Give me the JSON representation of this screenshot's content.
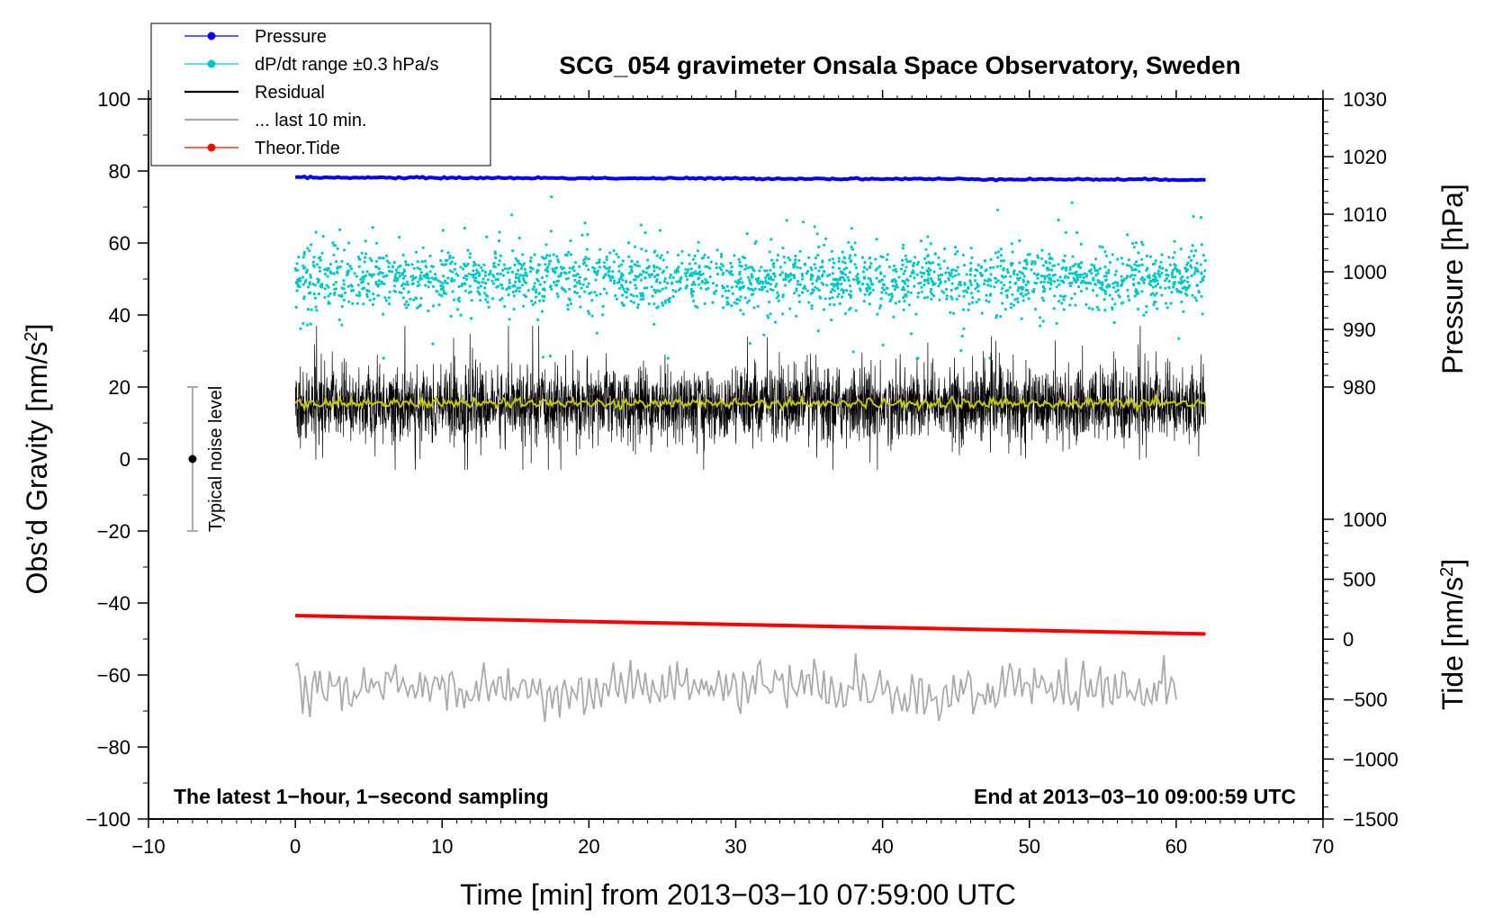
{
  "chart_data": {
    "type": "line",
    "title": "SCG_054 gravimeter Onsala Space Observatory, Sweden",
    "xlabel": "Time [min] from 2013−03−10 07:59:00 UTC",
    "ylabel_left": "Obs’d Gravity [nm/s",
    "ylabel_left_sup": "2",
    "ylabel_left_close": "]",
    "ylabel_right_pressure": "Pressure [hPa]",
    "ylabel_right_tide": "Tide [nm/s",
    "ylabel_right_tide_sup": "2",
    "ylabel_right_tide_close": "]",
    "xlim": [
      -10,
      70
    ],
    "ylim": [
      -100,
      100
    ],
    "x_ticks": [
      -10,
      0,
      10,
      20,
      30,
      40,
      50,
      60,
      70
    ],
    "x_tick_labels": [
      "−10",
      "0",
      "10",
      "20",
      "30",
      "40",
      "50",
      "60",
      "70"
    ],
    "y_ticks": [
      100,
      80,
      60,
      40,
      20,
      0,
      -20,
      -40,
      -60,
      -80,
      -100
    ],
    "y_tick_labels": [
      "100",
      "80",
      "60",
      "40",
      "20",
      "0",
      "−20",
      "−40",
      "−60",
      "−80",
      "−100"
    ],
    "pressure_axis": {
      "ylim": [
        980,
        1030
      ],
      "ticks": [
        1030,
        1020,
        1010,
        1000,
        990,
        980
      ],
      "tick_labels": [
        "1030",
        "1020",
        "1010",
        "1000",
        "990",
        "980"
      ]
    },
    "tide_axis": {
      "ylim": [
        -1500,
        1000
      ],
      "ticks": [
        1000,
        500,
        0,
        -500,
        -1000,
        -1500
      ],
      "tick_labels": [
        "1000",
        "500",
        "0",
        "−500",
        "−1000",
        "−1500"
      ]
    },
    "legend": [
      {
        "label": "Pressure",
        "color": "#0000ff",
        "marker": true
      },
      {
        "label": "dP/dt range ±0.3 hPa/s",
        "color": "#00c8c8",
        "marker": true
      },
      {
        "label": "Residual",
        "color": "#000000",
        "marker": false
      },
      {
        "label": "... last 10 min.",
        "color": "#aaaaaa",
        "marker": false
      },
      {
        "label": "Theor.Tide",
        "color": "#ff0000",
        "marker": true
      }
    ],
    "series": [
      {
        "name": "Pressure",
        "color": "#0000ff",
        "axis": "left",
        "x": [
          0,
          62
        ],
        "y": [
          78.2,
          77.6
        ]
      },
      {
        "name": "Theor.Tide",
        "color": "#ff0000",
        "axis": "left",
        "x": [
          0,
          62
        ],
        "y": [
          -43.5,
          -48.6
        ]
      },
      {
        "name": "dP/dt range",
        "color": "#00c8c8",
        "axis": "left",
        "center": 50,
        "spread": 4,
        "outlier_range": [
          28,
          82
        ],
        "x_range": [
          0,
          62
        ]
      },
      {
        "name": "Residual",
        "color": "#000000",
        "axis": "left",
        "center": 15,
        "amplitude": 9,
        "range": [
          -3,
          37
        ],
        "x_range": [
          0,
          62
        ]
      },
      {
        "name": "Residual smoothed",
        "color": "#c8c800",
        "axis": "left",
        "center": 15.5,
        "x_range": [
          0,
          62
        ]
      },
      {
        "name": "... last 10 min.",
        "color": "#aaaaaa",
        "axis": "left",
        "center": -64,
        "range": [
          -80,
          -46
        ],
        "x_range": [
          0,
          60
        ]
      }
    ],
    "noise_bar": {
      "label": "Typical noise level",
      "x": -7,
      "y": 0,
      "low": -20,
      "high": 20
    },
    "annotation_left": "The latest 1−hour, 1−second sampling",
    "annotation_right": "End at 2013−03−10 09:00:59 UTC"
  }
}
